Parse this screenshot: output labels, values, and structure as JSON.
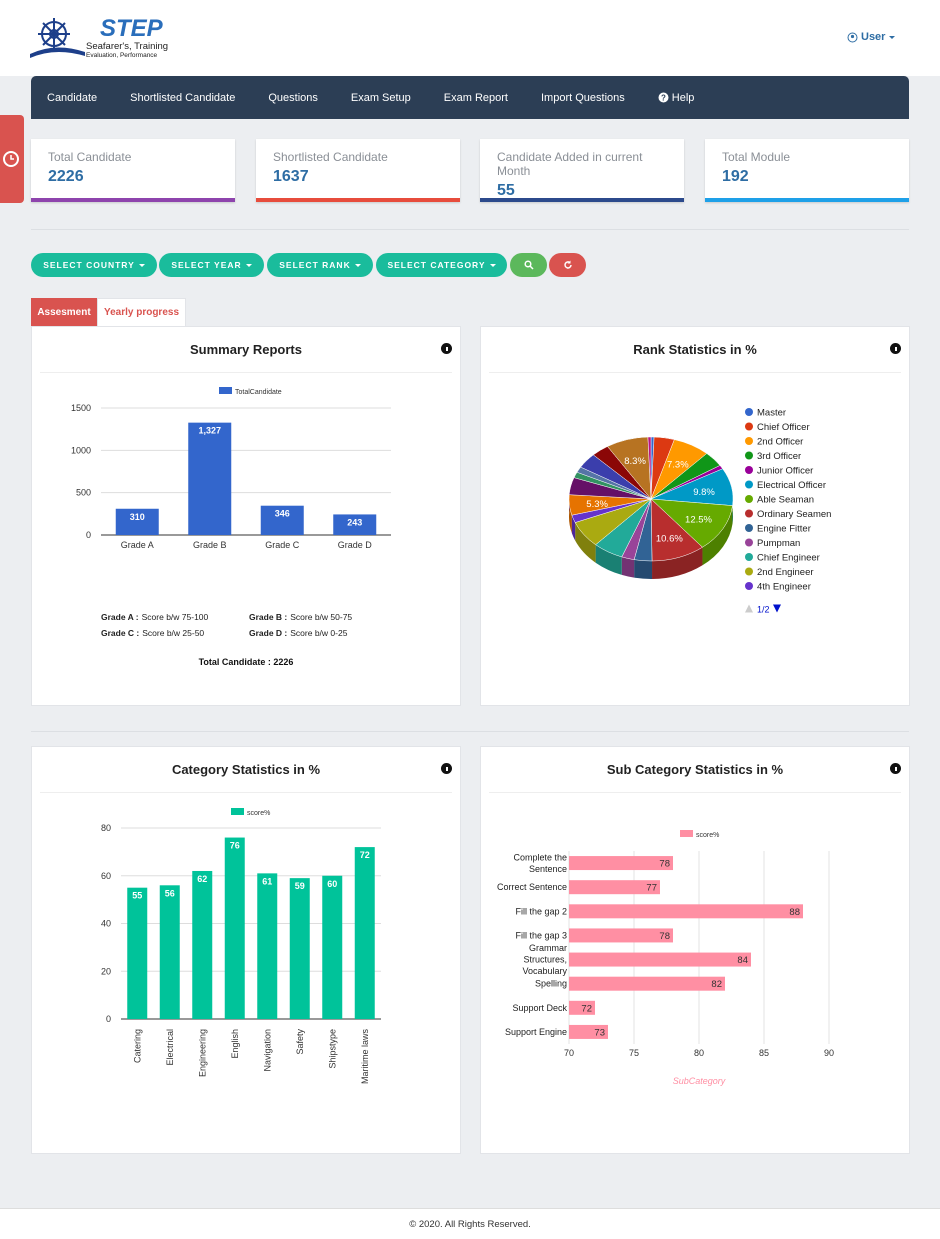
{
  "header": {
    "logo_title": "STEP",
    "logo_subtitle": "Seafarer's, Training",
    "logo_tagline": "Evaluation, Performance",
    "user": "User"
  },
  "nav": [
    "Candidate",
    "Shortlisted Candidate",
    "Questions",
    "Exam Setup",
    "Exam Report",
    "Import Questions",
    "Help"
  ],
  "stats": [
    {
      "label": "Total Candidate",
      "value": 2226,
      "color": "#8e44ad"
    },
    {
      "label": "Shortlisted Candidate",
      "value": 1637,
      "color": "#e74c3c"
    },
    {
      "label": "Candidate Added in current Month",
      "value": 55,
      "color": "#2c4a8c"
    },
    {
      "label": "Total Module",
      "value": 192,
      "color": "#1ea0e8"
    }
  ],
  "filters": [
    "SELECT COUNTRY",
    "SELECT YEAR",
    "SELECT RANK",
    "SELECT CATEGORY"
  ],
  "tabs": [
    "Assesment",
    "Yearly progress"
  ],
  "chart_data": [
    {
      "type": "bar",
      "title": "Summary Reports",
      "categories": [
        "Grade A",
        "Grade B",
        "Grade C",
        "Grade D"
      ],
      "series": [
        {
          "name": "TotalCandidate",
          "color": "#3366cc",
          "values": [
            310,
            1327,
            346,
            243
          ],
          "value_labels": [
            "310",
            "1,327",
            "346",
            "243"
          ]
        }
      ],
      "ylim": [
        0,
        1500
      ],
      "yticks": [
        0,
        500,
        1000,
        1500
      ],
      "grid": true,
      "notes": [
        {
          "label": "Grade A :",
          "text": "Score b/w 75-100"
        },
        {
          "label": "Grade B :",
          "text": "Score b/w 50-75"
        },
        {
          "label": "Grade C :",
          "text": "Score b/w 25-50"
        },
        {
          "label": "Grade D :",
          "text": "Score b/w 0-25"
        }
      ],
      "summary": "Total Candidate : 2226"
    },
    {
      "type": "pie",
      "title": "Rank Statistics in %",
      "categories": [
        "Master",
        "Chief Officer",
        "2nd Officer",
        "3rd Officer",
        "Junior Officer",
        "Electrical Officer",
        "Able Seaman",
        "Ordinary Seamen",
        "Engine Fitter",
        "Pumpman",
        "Chief Engineer",
        "2nd Engineer",
        "4th Engineer",
        null,
        null,
        null,
        null,
        null,
        null,
        null,
        null
      ],
      "values": [
        0.6,
        4.0,
        7.3,
        4.0,
        1.0,
        9.8,
        12.5,
        10.6,
        3.5,
        2.5,
        6.0,
        7.0,
        2.0,
        5.3,
        4.5,
        1.5,
        1.5,
        4.0,
        3.5,
        8.3,
        0.6
      ],
      "value_labels": [
        null,
        null,
        "7.3%",
        null,
        null,
        "9.8%",
        "12.5%",
        "10.6%",
        null,
        null,
        null,
        null,
        null,
        "5.3%",
        null,
        null,
        null,
        null,
        null,
        "8.3%",
        null
      ],
      "colors": [
        "#3366cc",
        "#dc3912",
        "#ff9900",
        "#109618",
        "#990099",
        "#0099c6",
        "#66aa00",
        "#b82e2e",
        "#316395",
        "#994499",
        "#22aa99",
        "#aaaa11",
        "#6633cc",
        "#e67300",
        "#651067",
        "#329262",
        "#5574a6",
        "#3b3eac",
        "#8b0707",
        "#b77322",
        "#b91383"
      ],
      "legend_page": "1/2"
    },
    {
      "type": "bar",
      "title": "Category Statistics in %",
      "categories": [
        "Catering",
        "Electrical",
        "Engineering",
        "English",
        "Navigation",
        "Safety",
        "Shipstype",
        "Maritime laws"
      ],
      "series": [
        {
          "name": "score%",
          "color": "#00c39a",
          "values": [
            55,
            56,
            62,
            76,
            61,
            59,
            60,
            72
          ]
        }
      ],
      "ylim": [
        0,
        80
      ],
      "yticks": [
        0,
        20,
        40,
        60,
        80
      ],
      "grid": true
    },
    {
      "type": "hbar",
      "title": "Sub Category Statistics in %",
      "categories": [
        "Complete the Sentence",
        "Correct Sentence",
        "Fill the gap 2",
        "Fill the gap 3",
        "Grammar Structures, Vocabulary",
        "Spelling",
        "Support Deck",
        "Support Engine"
      ],
      "series": [
        {
          "name": "score%",
          "color": "#ff8fa3",
          "values": [
            78,
            77,
            88,
            78,
            84,
            82,
            72,
            73
          ]
        }
      ],
      "xlim": [
        70,
        90
      ],
      "xticks": [
        70,
        75,
        80,
        85,
        90
      ],
      "grid": true,
      "x_label": "SubCategory"
    }
  ],
  "footer": "© 2020. All Rights Reserved."
}
